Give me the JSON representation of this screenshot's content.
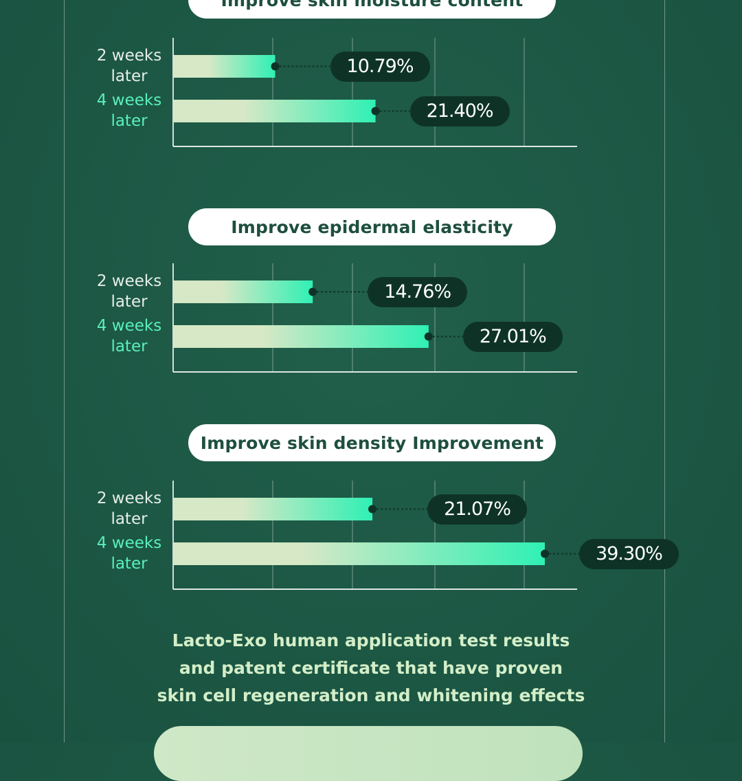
{
  "colors": {
    "background": "#1d5a46",
    "bar_start": "#d6e8c6",
    "bar_end": "#2ff0b4",
    "value_pill": "#0e3326",
    "label_2weeks": "#e6eee8",
    "label_4weeks": "#5af0bb",
    "caption": "#d3eec8"
  },
  "chart_data": [
    {
      "type": "bar",
      "orientation": "horizontal",
      "title": "Improve skin moisture content",
      "categories": [
        "2 weeks later",
        "4 weeks later"
      ],
      "values": [
        10.79,
        21.4
      ],
      "value_labels": [
        "10.79%",
        "21.40%"
      ],
      "xlim": [
        0,
        50
      ],
      "grid": true
    },
    {
      "type": "bar",
      "orientation": "horizontal",
      "title": "Improve epidermal elasticity",
      "categories": [
        "2 weeks later",
        "4 weeks later"
      ],
      "values": [
        14.76,
        27.01
      ],
      "value_labels": [
        "14.76%",
        "27.01%"
      ],
      "xlim": [
        0,
        50
      ],
      "grid": true
    },
    {
      "type": "bar",
      "orientation": "horizontal",
      "title": "Improve skin density Improvement",
      "categories": [
        "2 weeks later",
        "4 weeks later"
      ],
      "values": [
        21.07,
        39.3
      ],
      "value_labels": [
        "21.07%",
        "39.30%"
      ],
      "xlim": [
        0,
        50
      ],
      "grid": true
    }
  ],
  "row_labels": {
    "week2_line1": "2 weeks",
    "week4_line1": "4 weeks",
    "line2": "later"
  },
  "caption": {
    "line1": "Lacto-Exo human application test results",
    "line2": "and patent certificate that have proven",
    "line3": "skin cell regeneration and whitening effects"
  }
}
